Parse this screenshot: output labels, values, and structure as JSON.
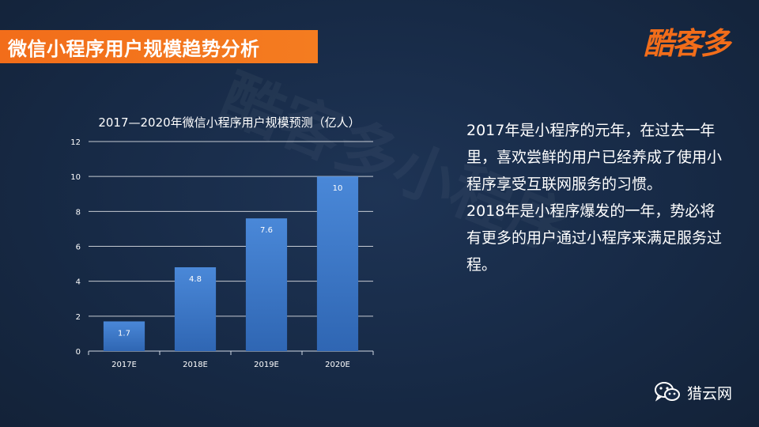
{
  "header": {
    "title": "微信小程序用户规模趋势分析",
    "logo_text": "酷客多"
  },
  "watermark_text": "酷客多小程序",
  "chart_data": {
    "type": "bar",
    "title": "2017—2020年微信小程序用户规模预测（亿人）",
    "categories": [
      "2017E",
      "2018E",
      "2019E",
      "2020E"
    ],
    "values": [
      1.7,
      4.8,
      7.6,
      10
    ],
    "value_labels": [
      "1.7",
      "4.8",
      "7.6",
      "10"
    ],
    "ylim": [
      0,
      12
    ],
    "yticks": [
      0,
      2,
      4,
      6,
      8,
      10,
      12
    ],
    "grid": true,
    "bar_color": "#3b78c8"
  },
  "description": {
    "paragraphs": [
      "2017年是小程序的元年，在过去一年里，喜欢尝鲜的用户已经养成了使用小程序享受互联网服务的习惯。",
      "2018年是小程序爆发的一年，势必将有更多的用户通过小程序来满足服务过程。"
    ]
  },
  "footer": {
    "brand": "猎云网",
    "icon": "wechat-icon"
  }
}
